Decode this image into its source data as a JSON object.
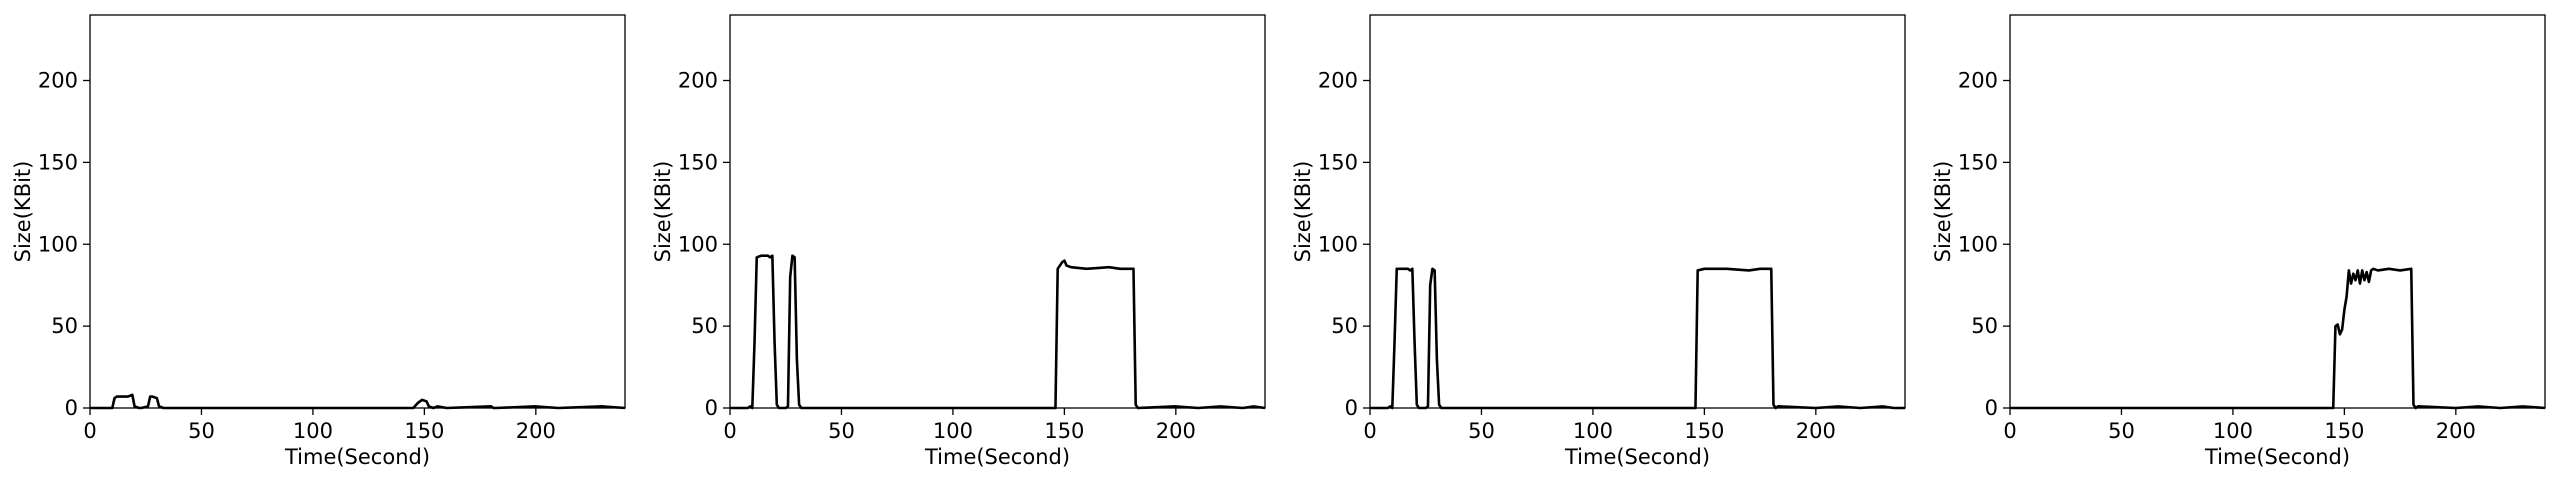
{
  "chart_data": [
    {
      "type": "line",
      "xlabel": "Time(Second)",
      "ylabel": "Size(KBit)",
      "xlim": [
        0,
        240
      ],
      "ylim": [
        0,
        240
      ],
      "xticks": [
        0,
        50,
        100,
        150,
        200
      ],
      "yticks": [
        0,
        50,
        100,
        150,
        200
      ],
      "grid": false,
      "series": [
        {
          "color": "#000000",
          "x": [
            0,
            10,
            11,
            12,
            17,
            19,
            20,
            22,
            23,
            26,
            27,
            28,
            30,
            31,
            33,
            60,
            100,
            140,
            145,
            147,
            149,
            151,
            152,
            154,
            156,
            160,
            180,
            181,
            182,
            200,
            210,
            230,
            240
          ],
          "y": [
            0,
            0,
            6,
            7,
            7,
            8,
            1,
            0,
            0,
            1,
            7,
            7,
            6,
            1,
            0,
            0,
            0,
            0,
            0,
            3,
            5,
            4,
            1,
            0,
            1,
            0,
            1,
            0,
            0,
            1,
            0,
            1,
            0
          ]
        }
      ]
    },
    {
      "type": "line",
      "xlabel": "Time(Second)",
      "ylabel": "Size(KBit)",
      "xlim": [
        0,
        240
      ],
      "ylim": [
        0,
        240
      ],
      "xticks": [
        0,
        50,
        100,
        150,
        200
      ],
      "yticks": [
        0,
        50,
        100,
        150,
        200
      ],
      "grid": false,
      "series": [
        {
          "color": "#000000",
          "x": [
            0,
            8,
            9,
            10,
            11,
            12,
            14,
            17,
            18,
            19,
            20,
            21,
            22,
            25,
            26,
            27,
            28,
            29,
            30,
            31,
            32,
            35,
            60,
            100,
            140,
            145,
            146,
            147,
            149,
            150,
            151,
            153,
            160,
            170,
            175,
            180,
            181,
            182,
            183,
            200,
            210,
            220,
            230,
            235,
            240
          ],
          "y": [
            0,
            0,
            1,
            0,
            40,
            92,
            93,
            93,
            92,
            93,
            40,
            2,
            0,
            0,
            1,
            80,
            93,
            92,
            30,
            2,
            0,
            0,
            0,
            0,
            0,
            0,
            0,
            85,
            89,
            90,
            87,
            86,
            85,
            86,
            85,
            85,
            85,
            2,
            0,
            1,
            0,
            1,
            0,
            1,
            0
          ]
        }
      ]
    },
    {
      "type": "line",
      "xlabel": "Time(Second)",
      "ylabel": "Size(KBit)",
      "xlim": [
        0,
        240
      ],
      "ylim": [
        0,
        240
      ],
      "xticks": [
        0,
        50,
        100,
        150,
        200
      ],
      "yticks": [
        0,
        50,
        100,
        150,
        200
      ],
      "grid": false,
      "series": [
        {
          "color": "#000000",
          "x": [
            0,
            8,
            9,
            10,
            11,
            12,
            14,
            17,
            18,
            19,
            20,
            21,
            22,
            25,
            26,
            27,
            28,
            29,
            30,
            31,
            32,
            35,
            60,
            100,
            140,
            145,
            146,
            147,
            150,
            160,
            170,
            175,
            180,
            181,
            182,
            183,
            200,
            210,
            220,
            230,
            235,
            240
          ],
          "y": [
            0,
            0,
            1,
            0,
            40,
            85,
            85,
            85,
            84,
            85,
            40,
            2,
            0,
            0,
            1,
            75,
            85,
            84,
            30,
            2,
            0,
            0,
            0,
            0,
            0,
            0,
            0,
            84,
            85,
            85,
            84,
            85,
            85,
            2,
            0,
            1,
            0,
            1,
            0,
            1,
            0,
            0
          ]
        }
      ]
    },
    {
      "type": "line",
      "xlabel": "Time(Second)",
      "ylabel": "Size(KBit)",
      "xlim": [
        0,
        240
      ],
      "ylim": [
        0,
        240
      ],
      "xticks": [
        0,
        50,
        100,
        150,
        200
      ],
      "yticks": [
        0,
        50,
        100,
        150,
        200
      ],
      "grid": false,
      "series": [
        {
          "color": "#000000",
          "x": [
            0,
            20,
            40,
            80,
            120,
            140,
            145,
            146,
            147,
            148,
            149,
            150,
            151,
            152,
            153,
            154,
            155,
            156,
            157,
            158,
            159,
            160,
            161,
            162,
            163,
            165,
            170,
            175,
            180,
            181,
            182,
            183,
            200,
            210,
            220,
            230,
            240
          ],
          "y": [
            0,
            0,
            0,
            0,
            0,
            0,
            0,
            50,
            51,
            45,
            48,
            60,
            68,
            84,
            76,
            82,
            78,
            84,
            76,
            84,
            78,
            83,
            77,
            84,
            85,
            84,
            85,
            84,
            85,
            2,
            0,
            1,
            0,
            1,
            0,
            1,
            0
          ]
        }
      ]
    }
  ]
}
